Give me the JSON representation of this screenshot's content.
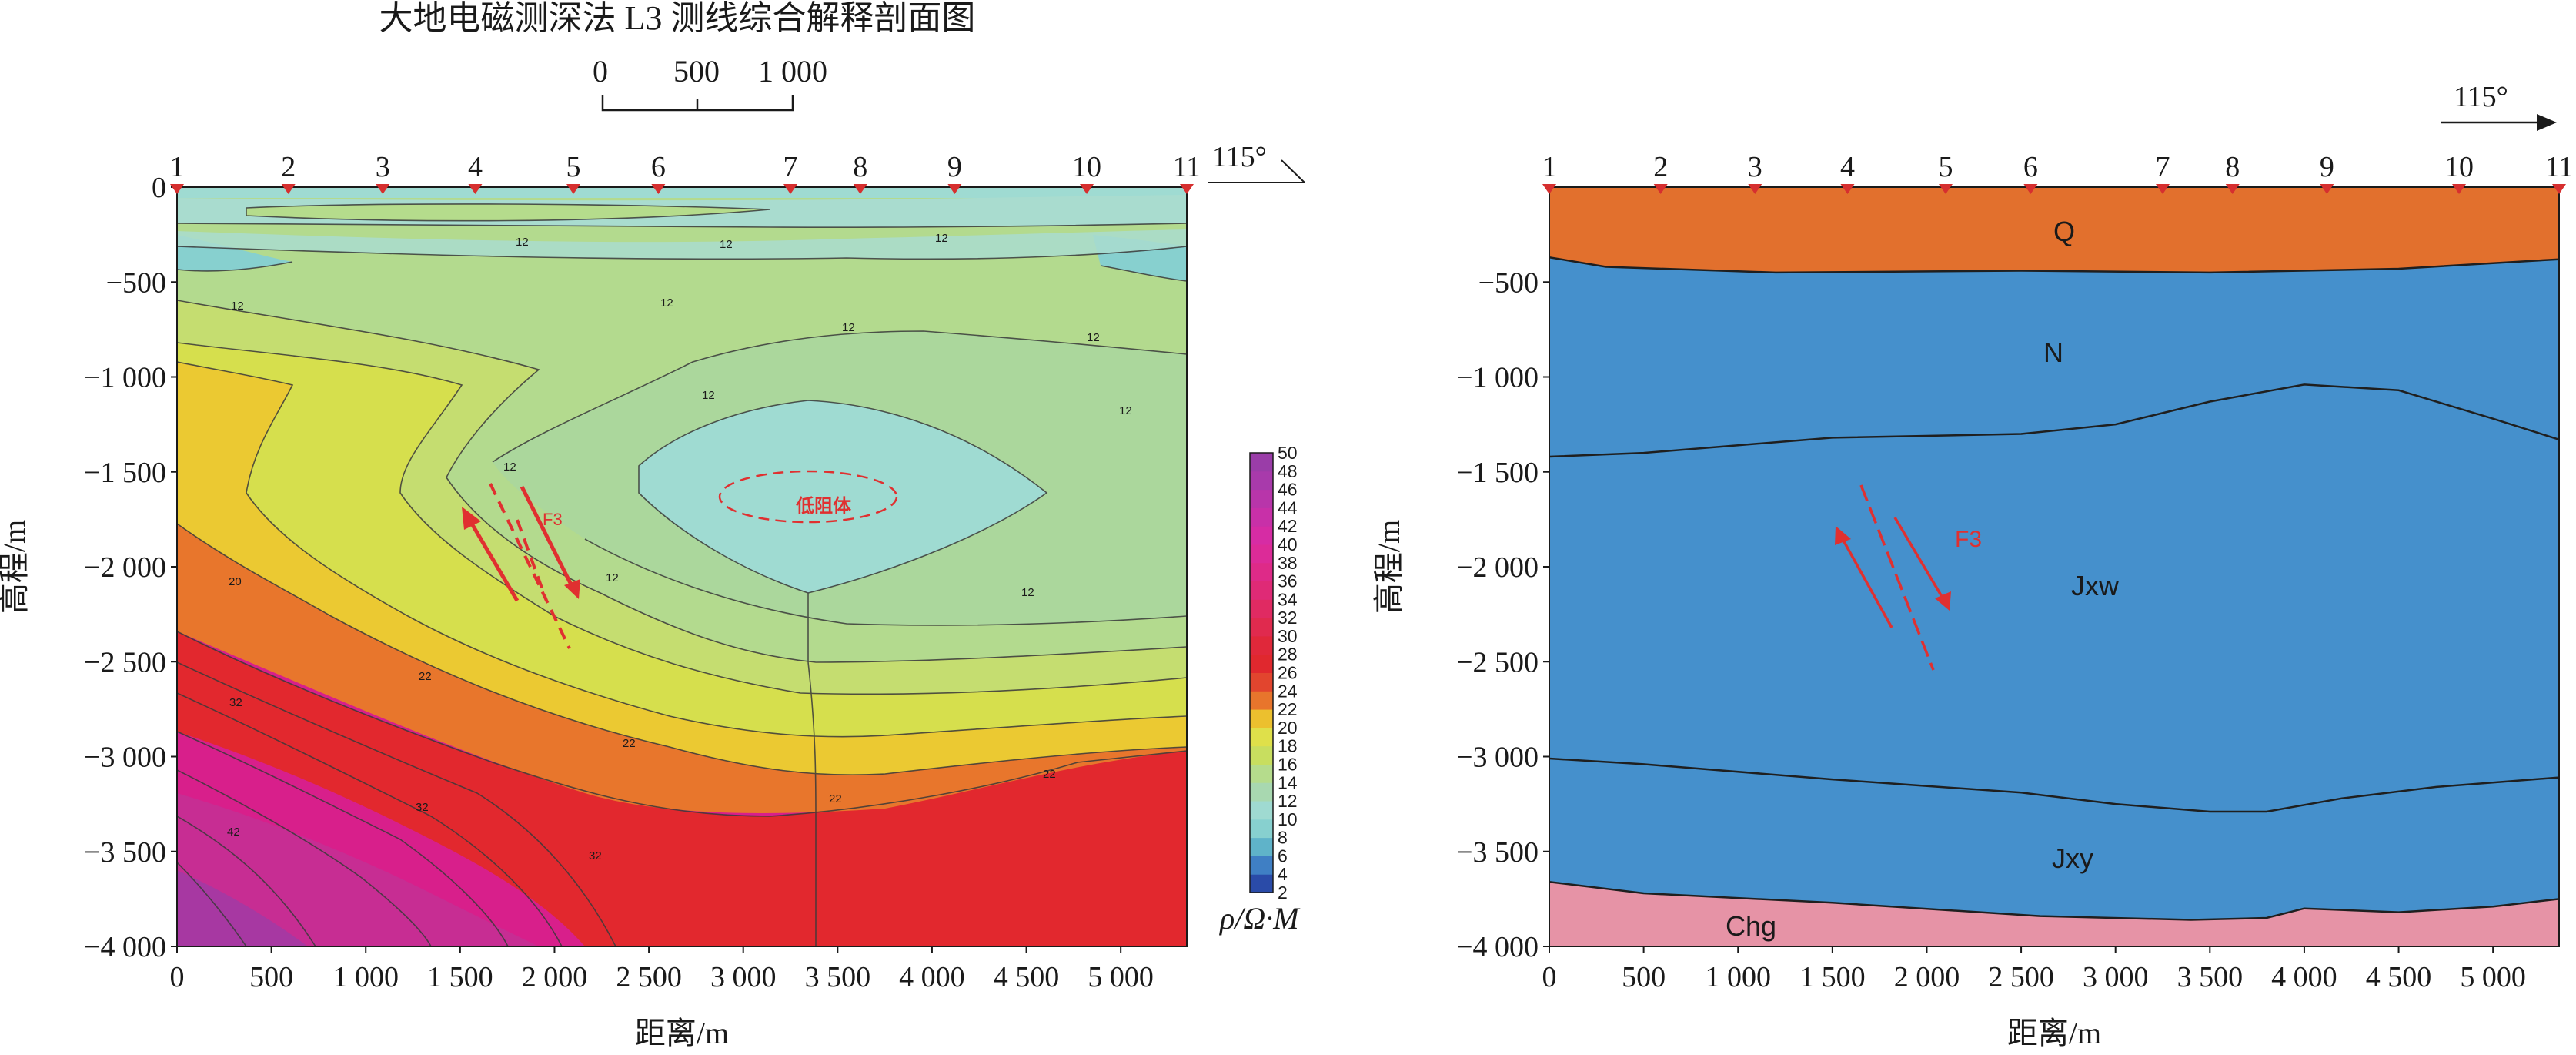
{
  "figure": {
    "title": "大地电磁测深法 L3 测线综合解释剖面图",
    "scale_bar_labels": [
      "0",
      "500",
      "1 000"
    ],
    "azimuth_label": "115°"
  },
  "chart_data": [
    {
      "type": "heatmap",
      "xlabel": "距离/m",
      "ylabel": "高程/m",
      "xlim": [
        0,
        5350
      ],
      "ylim": [
        -4000,
        0
      ],
      "x_ticks": [
        0,
        500,
        1000,
        1500,
        2000,
        2500,
        3000,
        3500,
        4000,
        4500,
        5000
      ],
      "x_tick_labels": [
        "0",
        "500",
        "1 000",
        "1 500",
        "2 000",
        "2 500",
        "3 000",
        "3 500",
        "4 000",
        "4 500",
        "5 000"
      ],
      "y_ticks": [
        0,
        -500,
        -1000,
        -1500,
        -2000,
        -2500,
        -3000,
        -3500,
        -4000
      ],
      "y_tick_labels": [
        "0",
        "−500",
        "−1 000",
        "−1 500",
        "−2 000",
        "−2 500",
        "−3 000",
        "−3 500",
        "−4 000"
      ],
      "stations": [
        {
          "label": "1",
          "x": 0
        },
        {
          "label": "2",
          "x": 590
        },
        {
          "label": "3",
          "x": 1090
        },
        {
          "label": "4",
          "x": 1580
        },
        {
          "label": "5",
          "x": 2100
        },
        {
          "label": "6",
          "x": 2550
        },
        {
          "label": "7",
          "x": 3250
        },
        {
          "label": "8",
          "x": 3620
        },
        {
          "label": "9",
          "x": 4120
        },
        {
          "label": "10",
          "x": 4820
        },
        {
          "label": "11",
          "x": 5350
        }
      ],
      "colorbar": {
        "label": "ρ/Ω·M",
        "tick_labels": [
          "2",
          "4",
          "6",
          "8",
          "10",
          "12",
          "14",
          "16",
          "18",
          "20",
          "22",
          "24",
          "26",
          "28",
          "30",
          "32",
          "34",
          "36",
          "38",
          "40",
          "42",
          "44",
          "46",
          "48",
          "50"
        ],
        "colors": [
          "#2a4ba8",
          "#3f7fc4",
          "#5fb3c9",
          "#87d0cf",
          "#9fdad1",
          "#a8d8b0",
          "#b5dc8c",
          "#c8de5f",
          "#dfe04a",
          "#ecc02e",
          "#e8752c",
          "#e2452e",
          "#e0282e",
          "#e0283a",
          "#e02a4e",
          "#e02a62",
          "#df2a76",
          "#de2a88",
          "#dc2b98",
          "#d62ca4",
          "#c830a8",
          "#b835aa",
          "#a83aab",
          "#9a3da8"
        ]
      },
      "layers": [
        {
          "value_min": 2,
          "value_max": 8,
          "label": "",
          "color": "#5fc6cd"
        },
        {
          "value_min": 8,
          "value_max": 10,
          "label": "",
          "color": "#9fdbd2"
        },
        {
          "value_min": 10,
          "value_max": 12,
          "label": "低阻体",
          "color": "#a9dccf"
        },
        {
          "value_min": 12,
          "value_max": 14,
          "label": "",
          "color": "#b3da8e"
        },
        {
          "value_min": 14,
          "value_max": 16,
          "label": "",
          "color": "#c5dd70"
        },
        {
          "value_min": 16,
          "value_max": 18,
          "label": "",
          "color": "#d6df4d"
        },
        {
          "value_min": 18,
          "value_max": 20,
          "label": "",
          "color": "#ebc932"
        },
        {
          "value_min": 20,
          "value_max": 22,
          "label": "",
          "color": "#e8762c"
        },
        {
          "value_min": 22,
          "value_max": 30,
          "label": "",
          "color": "#e2282e"
        },
        {
          "value_min": 30,
          "value_max": 50,
          "label": "",
          "color": "#d81f8b"
        }
      ],
      "contour_labels": [
        "12",
        "12",
        "12",
        "12",
        "12",
        "12",
        "12",
        "12",
        "12",
        "12",
        "12",
        "12",
        "20",
        "22",
        "22",
        "22",
        "22",
        "32",
        "32",
        "32",
        "42"
      ],
      "fault": {
        "label": "F3",
        "color": "#e03030"
      },
      "anomaly": {
        "label": "低阻体"
      }
    },
    {
      "type": "area",
      "xlabel": "距离/m",
      "ylabel": "高程/m",
      "xlim": [
        0,
        5350
      ],
      "ylim": [
        -4000,
        0
      ],
      "x_ticks": [
        0,
        500,
        1000,
        1500,
        2000,
        2500,
        3000,
        3500,
        4000,
        4500,
        5000
      ],
      "x_tick_labels": [
        "0",
        "500",
        "1 000",
        "1 500",
        "2 000",
        "2 500",
        "3 000",
        "3 500",
        "4 000",
        "4 500",
        "5 000"
      ],
      "y_ticks": [
        -500,
        -1000,
        -1500,
        -2000,
        -2500,
        -3000,
        -3500,
        -4000
      ],
      "y_tick_labels": [
        "−500",
        "−1 000",
        "−1 500",
        "−2 000",
        "−2 500",
        "−3 000",
        "−3 500",
        "−4 000"
      ],
      "stations": [
        {
          "label": "1",
          "x": 0
        },
        {
          "label": "2",
          "x": 590
        },
        {
          "label": "3",
          "x": 1090
        },
        {
          "label": "4",
          "x": 1580
        },
        {
          "label": "5",
          "x": 2100
        },
        {
          "label": "6",
          "x": 2550
        },
        {
          "label": "7",
          "x": 3250
        },
        {
          "label": "8",
          "x": 3620
        },
        {
          "label": "9",
          "x": 4120
        },
        {
          "label": "10",
          "x": 4820
        },
        {
          "label": "11",
          "x": 5350
        }
      ],
      "units": [
        {
          "name": "Q",
          "color": "#e2702d"
        },
        {
          "name": "N",
          "color": "#4590cc"
        },
        {
          "name": "Jxw",
          "color": "#6a7aa0"
        },
        {
          "name": "Jxy",
          "color": "#6a80bf"
        },
        {
          "name": "Chg",
          "color": "#e693a6"
        }
      ],
      "boundaries": [
        {
          "name": "Q/N",
          "x": [
            0,
            300,
            1200,
            2500,
            3500,
            4500,
            5350
          ],
          "y": [
            -370,
            -420,
            -450,
            -440,
            -450,
            -430,
            -380
          ]
        },
        {
          "name": "N/Jxw",
          "x": [
            0,
            500,
            1000,
            1500,
            2500,
            3000,
            3500,
            4000,
            4500,
            5000,
            5350
          ],
          "y": [
            -1420,
            -1400,
            -1360,
            -1320,
            -1300,
            -1250,
            -1130,
            -1040,
            -1070,
            -1220,
            -1330
          ]
        },
        {
          "name": "Jxw/Jxy",
          "x": [
            0,
            500,
            1500,
            2500,
            3000,
            3500,
            3800,
            4200,
            4700,
            5350
          ],
          "y": [
            -3010,
            -3040,
            -3120,
            -3190,
            -3250,
            -3290,
            -3290,
            -3220,
            -3160,
            -3110
          ]
        },
        {
          "name": "Jxy/Chg",
          "x": [
            0,
            500,
            1500,
            2600,
            3400,
            3800,
            4000,
            4500,
            5000,
            5350
          ],
          "y": [
            -3660,
            -3720,
            -3770,
            -3840,
            -3860,
            -3850,
            -3800,
            -3820,
            -3790,
            -3750
          ]
        }
      ],
      "fault": {
        "label": "F3",
        "color": "#e03030"
      }
    }
  ]
}
